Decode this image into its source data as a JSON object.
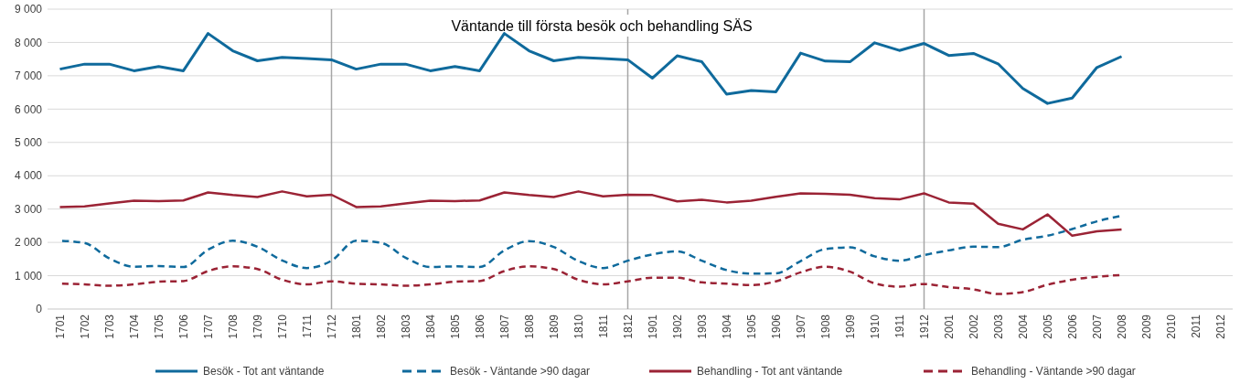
{
  "chart_data": {
    "type": "line",
    "title": "Väntande till första besök och behandling SÄS",
    "categories": [
      "1701",
      "1702",
      "1703",
      "1704",
      "1705",
      "1706",
      "1707",
      "1708",
      "1709",
      "1710",
      "1711",
      "1712",
      "1801",
      "1802",
      "1803",
      "1804",
      "1805",
      "1806",
      "1807",
      "1808",
      "1809",
      "1810",
      "1811",
      "1812",
      "1901",
      "1902",
      "1903",
      "1904",
      "1905",
      "1906",
      "1907",
      "1908",
      "1909",
      "1910",
      "1911",
      "1912",
      "2001",
      "2002",
      "2003",
      "2004",
      "2005",
      "2006",
      "2007",
      "2008",
      "2009",
      "2010",
      "2011",
      "2012"
    ],
    "series": [
      {
        "name": "Besök - Tot ant väntande",
        "color": "#0f6a9c",
        "line_style": "solid",
        "values": [
          7200,
          7350,
          7350,
          7150,
          7280,
          7150,
          8270,
          7750,
          7450,
          7550,
          7520,
          7480,
          7200,
          7350,
          7350,
          7150,
          7280,
          7150,
          8270,
          7750,
          7450,
          7550,
          7520,
          7480,
          6930,
          7600,
          7420,
          6450,
          6560,
          6520,
          7680,
          7440,
          7420,
          7990,
          7760,
          7970,
          7610,
          7670,
          7360,
          6620,
          6170,
          6330,
          7250,
          7580,
          null,
          null,
          null,
          null
        ]
      },
      {
        "name": "Besök - Väntande >90 dagar",
        "color": "#0f6a9c",
        "line_style": "dashed",
        "values": [
          2050,
          1980,
          1520,
          1270,
          1290,
          1260,
          1780,
          2050,
          1870,
          1460,
          1230,
          1450,
          2050,
          1990,
          1540,
          1260,
          1280,
          1260,
          1760,
          2040,
          1860,
          1440,
          1230,
          1450,
          1640,
          1730,
          1450,
          1170,
          1060,
          1070,
          1440,
          1800,
          1850,
          1580,
          1450,
          1620,
          1760,
          1870,
          1860,
          2080,
          2200,
          2400,
          2630,
          2800,
          null,
          null,
          null,
          null
        ]
      },
      {
        "name": "Behandling - Tot ant väntande",
        "color": "#9b2335",
        "line_style": "solid",
        "values": [
          3060,
          3080,
          3170,
          3250,
          3240,
          3260,
          3500,
          3420,
          3360,
          3530,
          3380,
          3430,
          3060,
          3080,
          3170,
          3250,
          3240,
          3260,
          3500,
          3420,
          3360,
          3530,
          3380,
          3430,
          3420,
          3230,
          3280,
          3200,
          3250,
          3370,
          3470,
          3460,
          3430,
          3330,
          3290,
          3470,
          3200,
          3160,
          2560,
          2390,
          2840,
          2200,
          2330,
          2390,
          null,
          null,
          null,
          null
        ]
      },
      {
        "name": "Behandling - Väntande >90 dagar",
        "color": "#9b2335",
        "line_style": "dashed",
        "values": [
          760,
          740,
          700,
          740,
          820,
          840,
          1140,
          1280,
          1200,
          880,
          740,
          830,
          760,
          740,
          700,
          740,
          820,
          840,
          1140,
          1280,
          1200,
          880,
          740,
          830,
          940,
          940,
          800,
          760,
          720,
          830,
          1100,
          1270,
          1120,
          770,
          670,
          750,
          660,
          590,
          450,
          510,
          730,
          880,
          970,
          1020,
          null,
          null,
          null,
          null
        ]
      }
    ],
    "ylim": [
      0,
      9000
    ],
    "yticks": [
      0,
      {
        "value": 1000,
        "label": "1 000"
      },
      {
        "value": 2000,
        "label": "2 000"
      },
      {
        "value": 3000,
        "label": "3 000"
      },
      {
        "value": 4000,
        "label": "4 000"
      },
      {
        "value": 5000,
        "label": "5 000"
      },
      {
        "value": 6000,
        "label": "6 000"
      },
      {
        "value": 7000,
        "label": "7 000"
      },
      {
        "value": 8000,
        "label": "8 000"
      },
      {
        "value": 9000,
        "label": "9 000"
      }
    ],
    "grid": "y",
    "legend": "bottom",
    "marker": "none",
    "ref_lines": [
      {
        "axis": "x",
        "value": "1712",
        "color": "#a6a6a6"
      },
      {
        "axis": "x",
        "value": "1812",
        "color": "#a6a6a6"
      },
      {
        "axis": "x",
        "value": "1912",
        "color": "#a6a6a6"
      }
    ]
  }
}
